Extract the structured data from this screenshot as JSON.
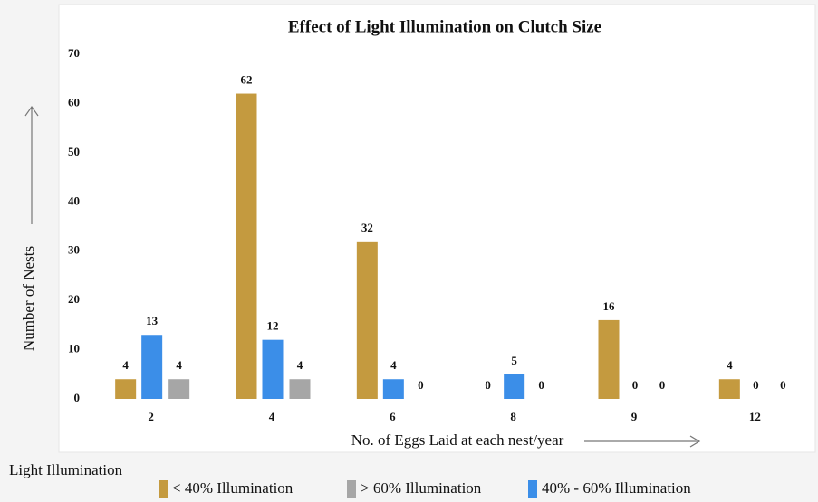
{
  "chart_data": {
    "type": "bar",
    "title": "Effect of Light Illumination on Clutch Size",
    "x_label": "No. of Eggs Laid at each nest/year",
    "y_label": "Number of Nests",
    "legend_title": "Light Illumination",
    "categories": [
      "2",
      "4",
      "6",
      "8",
      "9",
      "12"
    ],
    "series": [
      {
        "name": "< 40% Illumination",
        "color": "#c49a3f",
        "values": [
          4,
          62,
          32,
          0,
          16,
          4
        ]
      },
      {
        "name": "> 60% Illumination",
        "color": "#a6a6a6",
        "values": [
          4,
          4,
          0,
          0,
          0,
          0
        ]
      },
      {
        "name": "40% - 60% Illumination",
        "color": "#3b8ee8",
        "values": [
          13,
          12,
          4,
          5,
          0,
          0
        ]
      }
    ],
    "ylim": [
      0,
      70
    ],
    "yticks": [
      0,
      10,
      20,
      30,
      40,
      50,
      60,
      70
    ],
    "grid": false
  }
}
